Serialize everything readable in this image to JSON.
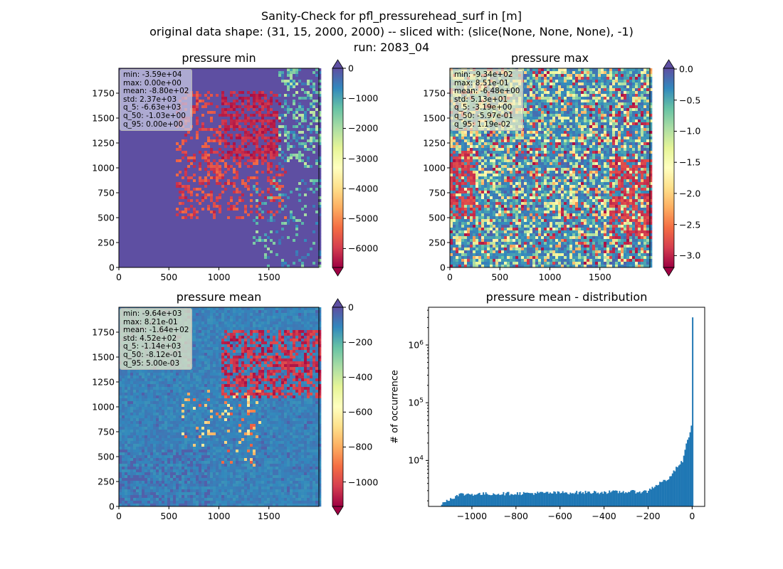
{
  "figure": {
    "title_lines": [
      "Sanity-Check for pfl_pressurehead_surf in [m]",
      "original data shape: (31, 15, 2000, 2000) -- sliced with: (slice(None, None, None), -1)",
      "run: 2083_04"
    ]
  },
  "colors": {
    "spectral": [
      "#9e0142",
      "#d53e4f",
      "#f46d43",
      "#fdae61",
      "#fee08b",
      "#ffffbf",
      "#e6f598",
      "#abdda4",
      "#66c2a5",
      "#3288bd",
      "#5e4fa2"
    ],
    "histogram_bar": "#1f77b4"
  },
  "chart_data": [
    {
      "type": "heatmap",
      "title": "pressure min",
      "x_ticks": [
        "0",
        "500",
        "1000",
        "1500"
      ],
      "y_ticks": [
        "0",
        "250",
        "500",
        "750",
        "1000",
        "1250",
        "1500",
        "1750"
      ],
      "xlim": [
        0,
        2000
      ],
      "ylim": [
        0,
        2000
      ],
      "colorbar": {
        "ticks": [
          "0",
          "−1000",
          "−2000",
          "−3000",
          "−4000",
          "−5000",
          "−6000"
        ],
        "tick_values": [
          0,
          -1000,
          -2000,
          -3000,
          -4000,
          -5000,
          -6000
        ],
        "range": [
          -6630,
          0
        ],
        "extend": "both",
        "cmap": "Spectral"
      },
      "stats": [
        "min: -3.59e+04",
        "max: 0.00e+00",
        "mean: -8.80e+02",
        "std: 2.37e+03",
        "q_5: -6.63e+03",
        "q_50: -1.03e+00",
        "q_95: 0.00e+00"
      ],
      "appearance": {
        "background": "blue-purple",
        "features": "red speckle over central and north-east region"
      }
    },
    {
      "type": "heatmap",
      "title": "pressure max",
      "x_ticks": [
        "0",
        "500",
        "1000",
        "1500"
      ],
      "y_ticks": [
        "0",
        "250",
        "500",
        "750",
        "1000",
        "1250",
        "1500",
        "1750"
      ],
      "xlim": [
        0,
        2000
      ],
      "ylim": [
        0,
        2000
      ],
      "colorbar": {
        "ticks": [
          "0.0",
          "−0.5",
          "−1.0",
          "−1.5",
          "−2.0",
          "−2.5",
          "−3.0"
        ],
        "tick_values": [
          0,
          -0.5,
          -1.0,
          -1.5,
          -2.0,
          -2.5,
          -3.0
        ],
        "range": [
          -3.19,
          0.0119
        ],
        "extend": "both",
        "cmap": "Spectral"
      },
      "stats": [
        "min: -9.34e+02",
        "max: 8.51e-01",
        "mean: -6.48e+00",
        "std: 5.13e+01",
        "q_5: -3.19e+00",
        "q_50: -5.97e-01",
        "q_95: 1.19e-02"
      ],
      "appearance": {
        "background": "light yellow",
        "features": "mixed orange / red / blue patches"
      }
    },
    {
      "type": "heatmap",
      "title": "pressure mean",
      "x_ticks": [
        "0",
        "500",
        "1000",
        "1500"
      ],
      "y_ticks": [
        "0",
        "250",
        "500",
        "750",
        "1000",
        "1250",
        "1500",
        "1750"
      ],
      "xlim": [
        0,
        2000
      ],
      "ylim": [
        0,
        2000
      ],
      "colorbar": {
        "ticks": [
          "0",
          "−200",
          "−400",
          "−600",
          "−800",
          "−1000"
        ],
        "tick_values": [
          0,
          -200,
          -400,
          -600,
          -800,
          -1000
        ],
        "range": [
          -1140,
          0.005
        ],
        "extend": "both",
        "cmap": "Spectral"
      },
      "stats": [
        "min: -9.64e+03",
        "max: 8.21e-01",
        "mean: -1.64e+02",
        "std: 4.52e+02",
        "q_5: -1.14e+03",
        "q_50: -8.12e-01",
        "q_95: 5.00e-03"
      ],
      "appearance": {
        "background": "light yellow",
        "features": "red speckle in north-east, blue speckle in south-west"
      }
    },
    {
      "type": "bar",
      "title": "pressure mean - distribution",
      "ylabel": "# of occurrence",
      "xlabel": "",
      "x_ticks": [
        "−1000",
        "−800",
        "−600",
        "−400",
        "−200",
        "0"
      ],
      "x_tick_values": [
        -1000,
        -800,
        -600,
        -400,
        -200,
        0
      ],
      "y_ticks": [
        "10^4",
        "10^5",
        "10^6"
      ],
      "y_tick_values": [
        10000,
        100000,
        1000000
      ],
      "yscale": "log",
      "xlim": [
        -1197,
        57
      ],
      "ylim": [
        1600,
        4500000
      ],
      "bin_range": [
        -1140,
        5
      ],
      "bin_count": 200,
      "approx_counts": {
        "start": 1800,
        "plateau_low": 2600,
        "plateau_high": 2900,
        "at_minus_200": 3000,
        "at_minus_100": 5000,
        "at_minus_40": 10000,
        "at_minus_10": 30000,
        "near_zero_peak": 2900000
      }
    }
  ]
}
